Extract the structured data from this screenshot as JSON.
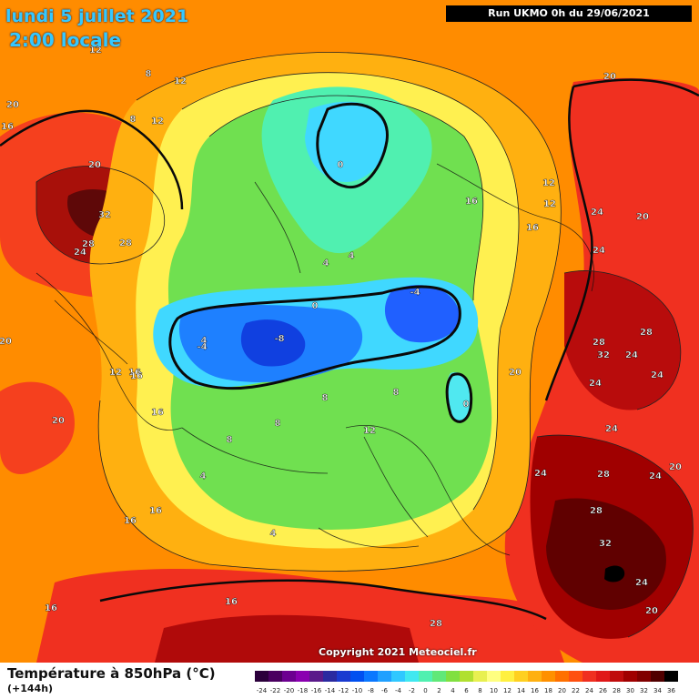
{
  "header": {
    "date": "lundi 5 juillet 2021",
    "time": "2:00 locale",
    "run": "Run UKMO 0h du 29/06/2021"
  },
  "copyright": "Copyright 2021 Meteociel.fr",
  "footer": {
    "title": "Température à 850hPa (°C)",
    "subtitle": "(+144h)"
  },
  "legend": {
    "ticks": [
      "-24",
      "-22",
      "-20",
      "-18",
      "-16",
      "-14",
      "-12",
      "-10",
      "-8",
      "-6",
      "-4",
      "-2",
      "0",
      "2",
      "4",
      "6",
      "8",
      "10",
      "12",
      "14",
      "16",
      "18",
      "20",
      "22",
      "24",
      "26",
      "28",
      "30",
      "32",
      "34",
      "36"
    ],
    "colors": [
      "#2b003b",
      "#4a0060",
      "#6c0090",
      "#8a00b0",
      "#5a1a8a",
      "#2a2aa0",
      "#1a3ad0",
      "#0050f0",
      "#0a78ff",
      "#20a0ff",
      "#30c8ff",
      "#40e8f0",
      "#50f0b0",
      "#60e878",
      "#80e040",
      "#b0e030",
      "#e8f050",
      "#ffff80",
      "#fff040",
      "#ffd020",
      "#ffb010",
      "#ff9000",
      "#ff7000",
      "#ff5010",
      "#f03020",
      "#e01818",
      "#c00c0c",
      "#a00000",
      "#800000",
      "#500000",
      "#000000"
    ]
  },
  "map": {
    "contour_labels": [
      {
        "text": "12",
        "name": "label-12-a"
      },
      {
        "text": "8",
        "name": "label-8-a"
      },
      {
        "text": "12",
        "name": "label-12-b"
      },
      {
        "text": "8",
        "name": "label-8-b"
      },
      {
        "text": "12",
        "name": "label-12-c"
      },
      {
        "text": "20",
        "name": "label-20-a"
      },
      {
        "text": "16",
        "name": "label-16-a"
      },
      {
        "text": "20",
        "name": "label-20-b"
      },
      {
        "text": "32",
        "name": "label-32-a"
      },
      {
        "text": "28",
        "name": "label-28-a"
      },
      {
        "text": "28",
        "name": "label-28-b"
      },
      {
        "text": "24",
        "name": "label-24-a"
      },
      {
        "text": "20",
        "name": "label-20-c"
      },
      {
        "text": "16",
        "name": "label-16-b"
      },
      {
        "text": "12",
        "name": "label-12-d"
      },
      {
        "text": "0",
        "name": "label-0-a"
      },
      {
        "text": "4",
        "name": "label-4-a"
      },
      {
        "text": "4",
        "name": "label-4-b"
      },
      {
        "text": "0",
        "name": "label-0-b"
      },
      {
        "text": "-4",
        "name": "label-neg4-a"
      },
      {
        "text": "-8",
        "name": "label-neg8-a"
      },
      {
        "text": "4",
        "name": "label-4-c"
      },
      {
        "text": "-4",
        "name": "label-neg4-b"
      },
      {
        "text": "0",
        "name": "label-0-c"
      },
      {
        "text": "16",
        "name": "label-16-c"
      },
      {
        "text": "12",
        "name": "label-12-e"
      },
      {
        "text": "12",
        "name": "label-12-f"
      },
      {
        "text": "16",
        "name": "label-16-d"
      },
      {
        "text": "20",
        "name": "label-20-d"
      },
      {
        "text": "24",
        "name": "label-24-b"
      },
      {
        "text": "20",
        "name": "label-20-e"
      },
      {
        "text": "24",
        "name": "label-24-c"
      },
      {
        "text": "28",
        "name": "label-28-c"
      },
      {
        "text": "28",
        "name": "label-28-d"
      },
      {
        "text": "32",
        "name": "label-32-b"
      },
      {
        "text": "24",
        "name": "label-24-d"
      },
      {
        "text": "24",
        "name": "label-24-e"
      },
      {
        "text": "24",
        "name": "label-24-f"
      },
      {
        "text": "20",
        "name": "label-20-f"
      },
      {
        "text": "8",
        "name": "label-8-c"
      },
      {
        "text": "8",
        "name": "label-8-d"
      },
      {
        "text": "12",
        "name": "label-12-g"
      },
      {
        "text": "16",
        "name": "label-16-e"
      },
      {
        "text": "16",
        "name": "label-16-f"
      },
      {
        "text": "8",
        "name": "label-8-e"
      },
      {
        "text": "8",
        "name": "label-8-f"
      },
      {
        "text": "4",
        "name": "label-4-d"
      },
      {
        "text": "4",
        "name": "label-4-e"
      },
      {
        "text": "16",
        "name": "label-16-g"
      },
      {
        "text": "16",
        "name": "label-16-h"
      },
      {
        "text": "16",
        "name": "label-16-i"
      },
      {
        "text": "16",
        "name": "label-16-j"
      },
      {
        "text": "24",
        "name": "label-24-g"
      },
      {
        "text": "24",
        "name": "label-24-h"
      },
      {
        "text": "28",
        "name": "label-28-e"
      },
      {
        "text": "20",
        "name": "label-20-g"
      },
      {
        "text": "28",
        "name": "label-28-f"
      },
      {
        "text": "32",
        "name": "label-32-c"
      },
      {
        "text": "24",
        "name": "label-24-i"
      },
      {
        "text": "20",
        "name": "label-20-h"
      },
      {
        "text": "28",
        "name": "label-28-g"
      },
      {
        "text": "20",
        "name": "label-20-i"
      },
      {
        "text": "24",
        "name": "label-24-j"
      }
    ]
  }
}
